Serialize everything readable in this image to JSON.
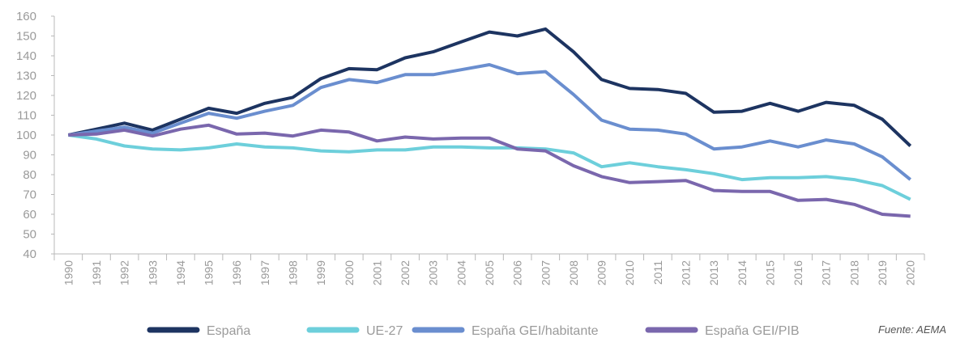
{
  "chart_data": {
    "type": "line",
    "categories": [
      "1990",
      "1991",
      "1992",
      "1993",
      "1994",
      "1995",
      "1996",
      "1997",
      "1998",
      "1999",
      "2000",
      "2001",
      "2002",
      "2003",
      "2004",
      "2005",
      "2006",
      "2007",
      "2008",
      "2009",
      "2010",
      "2011",
      "2012",
      "2013",
      "2014",
      "2015",
      "2016",
      "2017",
      "2018",
      "2019",
      "2020"
    ],
    "series": [
      {
        "name": "España",
        "color": "#1d3461",
        "values": [
          100,
          103,
          106,
          102.5,
          108,
          113.5,
          111,
          116,
          119,
          128.5,
          133.5,
          133,
          139,
          142,
          147,
          152,
          150,
          153.5,
          142,
          128,
          123.5,
          123,
          121,
          111.5,
          112,
          116,
          112,
          116.5,
          115,
          108,
          94.5
        ]
      },
      {
        "name": "UE-27",
        "color": "#6dcfdb",
        "values": [
          100,
          98,
          94.5,
          93,
          92.5,
          93.5,
          95.5,
          94,
          93.5,
          92,
          91.5,
          92.5,
          92.5,
          94,
          94,
          93.5,
          93.5,
          93,
          91,
          84,
          86,
          84,
          82.5,
          80.5,
          77.5,
          78.5,
          78.5,
          79,
          77.5,
          74.5,
          67.5
        ]
      },
      {
        "name": "España GEI/habitante",
        "color": "#6a8ecf",
        "values": [
          100,
          102,
          104,
          101,
          106,
          111,
          108.5,
          112,
          115,
          124,
          128,
          126.5,
          130.5,
          130.5,
          133,
          135.5,
          131,
          132,
          120.5,
          107.5,
          103,
          102.5,
          100.5,
          93,
          94,
          97,
          94,
          97.5,
          95.5,
          89,
          77.5
        ]
      },
      {
        "name": "España GEI/PIB",
        "color": "#7a67ad",
        "values": [
          100,
          100.5,
          102.5,
          99.5,
          103,
          105,
          100.5,
          101,
          99.5,
          102.5,
          101.5,
          97,
          99,
          98,
          98.5,
          98.5,
          93,
          92,
          84.5,
          79,
          76,
          76.5,
          77,
          72,
          71.5,
          71.5,
          67,
          67.5,
          65,
          60,
          59
        ]
      }
    ],
    "ylim": [
      40,
      160
    ],
    "yticks": [
      40,
      50,
      60,
      70,
      80,
      90,
      100,
      110,
      120,
      130,
      140,
      150,
      160
    ],
    "source": "Fuente: AEMA"
  }
}
